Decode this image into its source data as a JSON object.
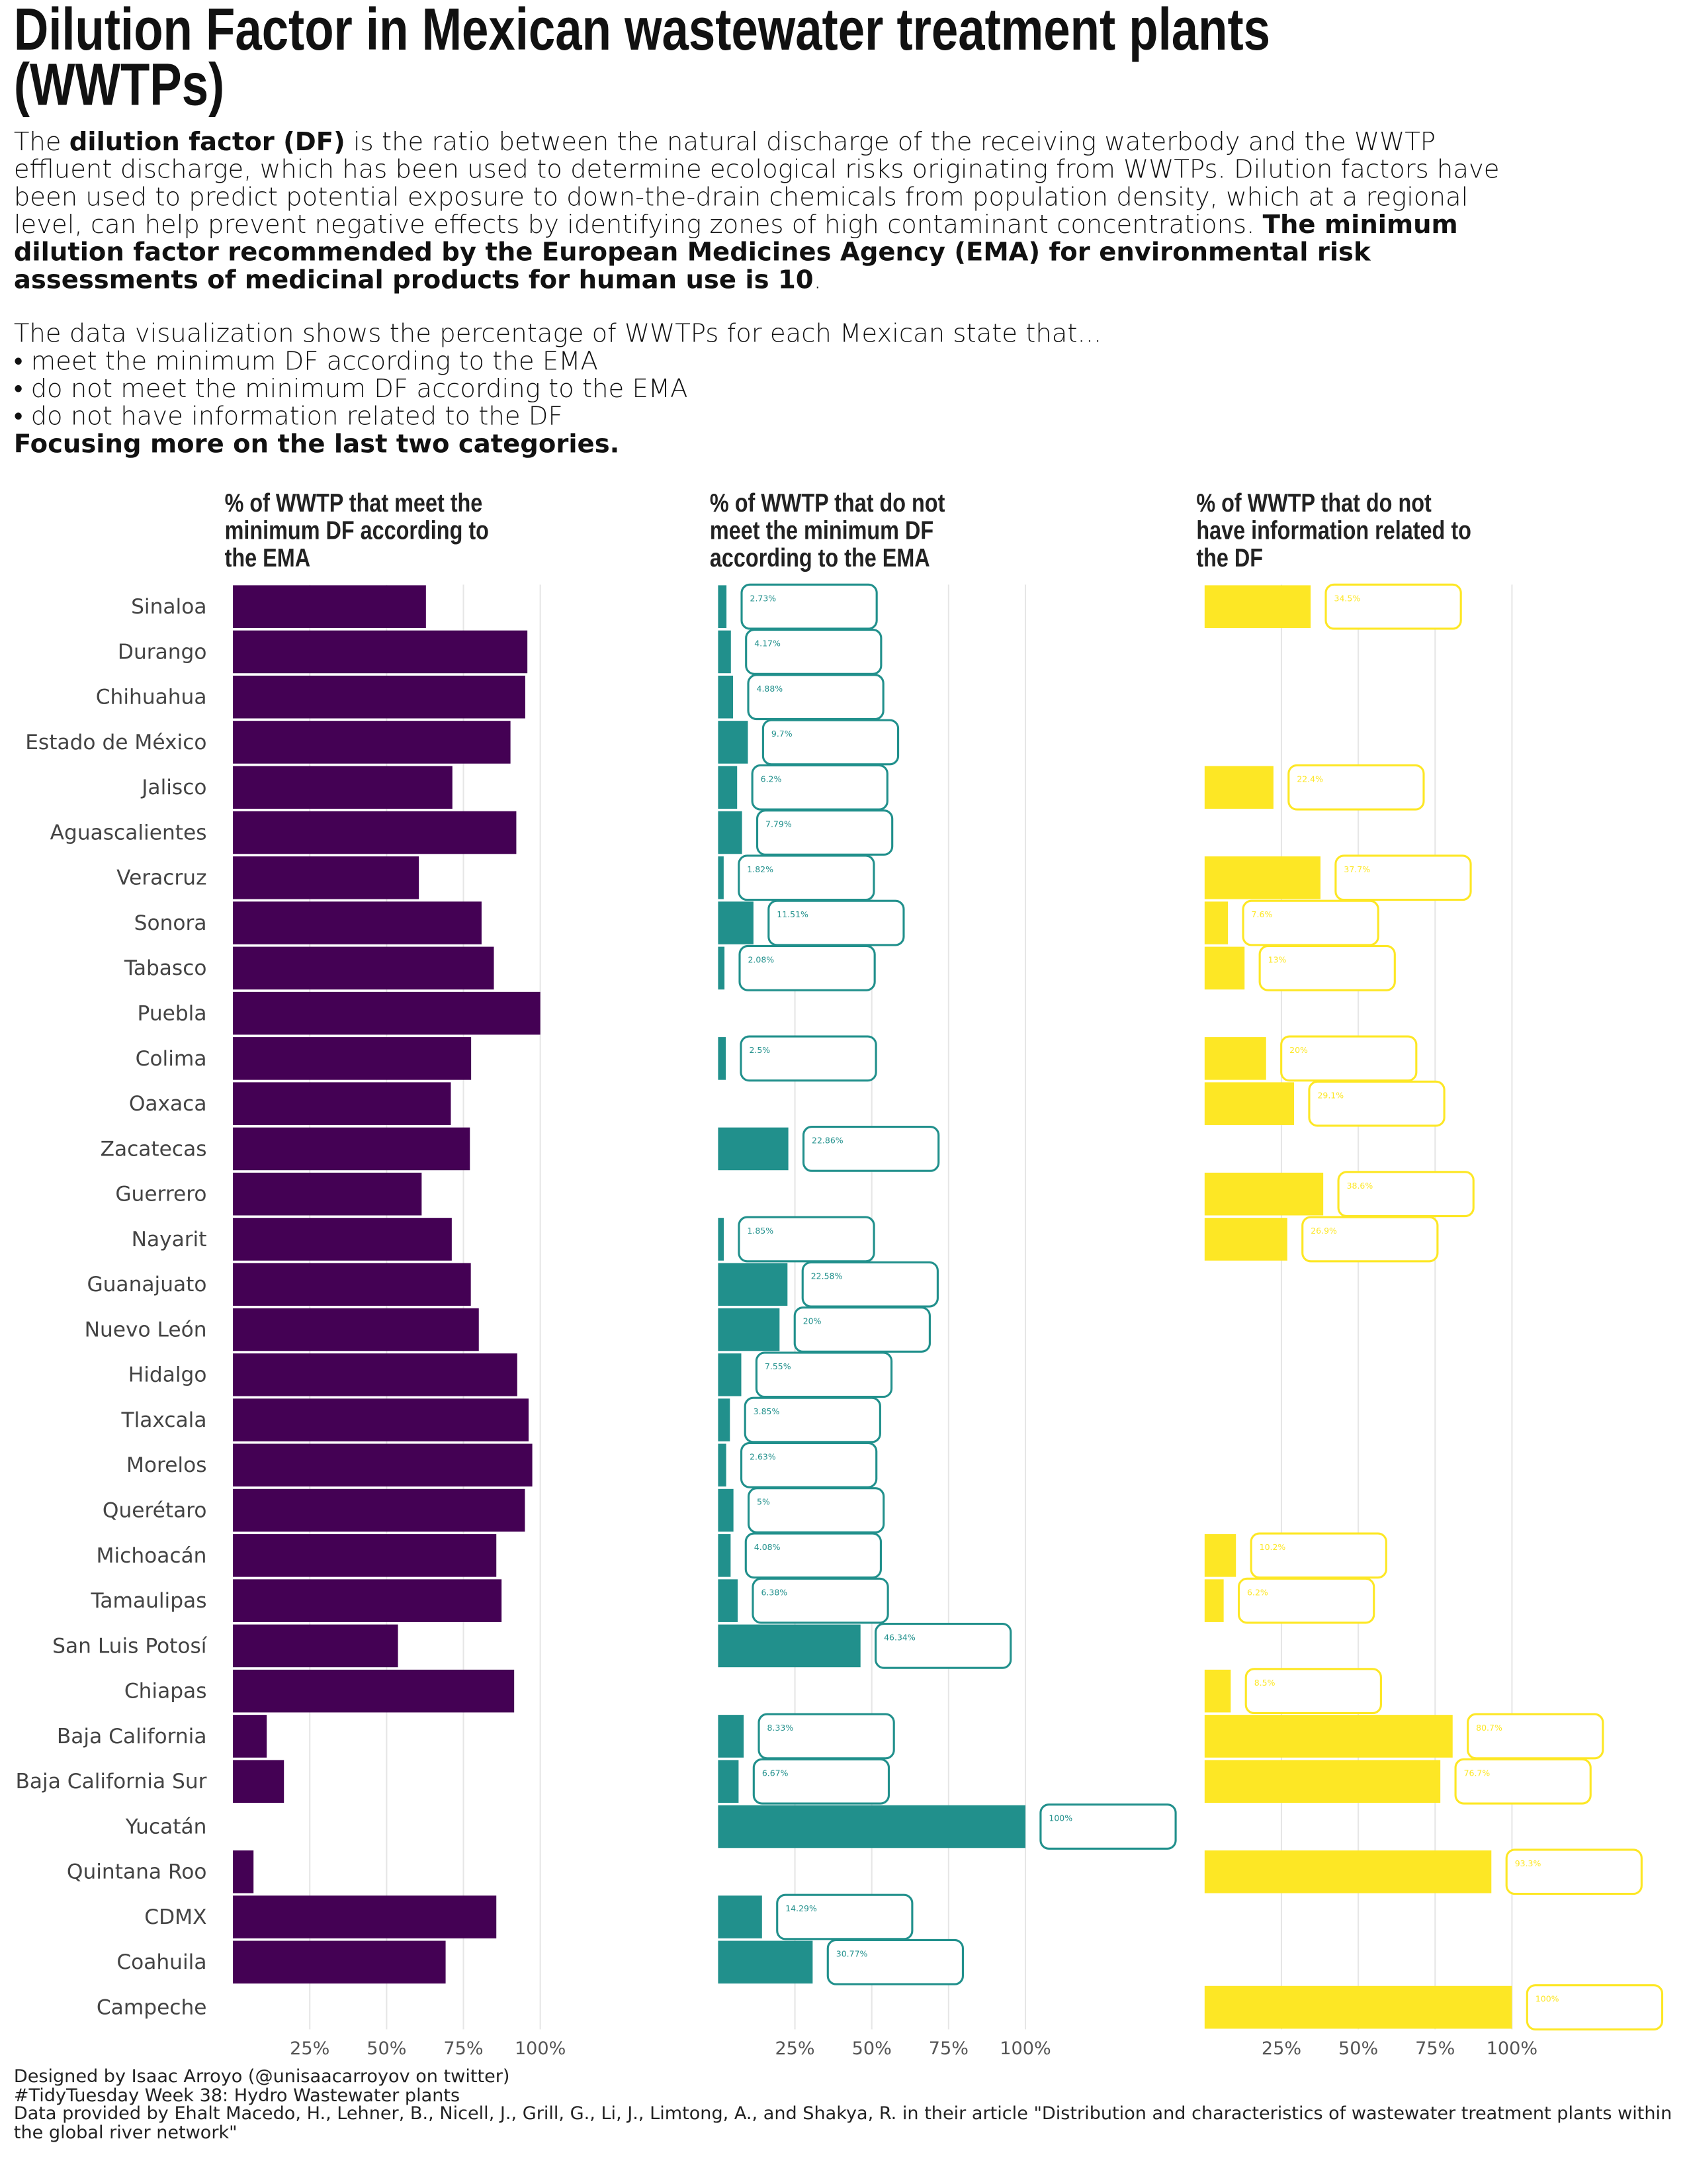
{
  "header": {
    "title": "Dilution Factor in Mexican wastewater treatment plants (WWTPs)",
    "intro": [
      "The ",
      "dilution factor (DF)",
      " is the ratio between the natural discharge of the receiving waterbody and the WWTP effluent discharge, which has been used to determine ecological risks originating from WWTPs. Dilution factors have been used to predict potential exposure to down-the-drain chemicals from population density, which at a regional level, can help prevent negative effects by identifying zones of high contaminant concentrations. ",
      "The minimum dilution factor recommended by the European Medicines Agency (EMA) for environmental risk assessments of medicinal products for human use is 10",
      "."
    ],
    "lead": "The data visualization shows the percentage of WWTPs for each Mexican state that...",
    "bullets": [
      "• meet the minimum DF according to the EMA",
      "• do not meet the minimum DF according to the EMA",
      "• do not have information related to the DF"
    ],
    "focus": "Focusing more on the last two categories."
  },
  "chart_data": {
    "type": "bar",
    "orientation": "horizontal",
    "categories": [
      "Sinaloa",
      "Durango",
      "Chihuahua",
      "Estado de México",
      "Jalisco",
      "Aguascalientes",
      "Veracruz",
      "Sonora",
      "Tabasco",
      "Puebla",
      "Colima",
      "Oaxaca",
      "Zacatecas",
      "Guerrero",
      "Nayarit",
      "Guanajuato",
      "Nuevo León",
      "Hidalgo",
      "Tlaxcala",
      "Morelos",
      "Querétaro",
      "Michoacán",
      "Tamaulipas",
      "San Luis Potosí",
      "Chiapas",
      "Baja California",
      "Baja California Sur",
      "Yucatán",
      "Quintana Roo",
      "CDMX",
      "Coahuila",
      "Campeche"
    ],
    "series": [
      {
        "name": "% of WWTP that meet the minimum DF according to the EMA",
        "color": "#440154",
        "values": [
          62.8,
          95.8,
          95.1,
          90.3,
          71.4,
          92.2,
          60.5,
          80.9,
          84.9,
          100,
          77.5,
          70.9,
          77.1,
          61.4,
          71.2,
          77.4,
          80,
          92.5,
          96.2,
          97.4,
          95,
          85.7,
          87.4,
          53.7,
          91.5,
          11,
          16.6,
          0,
          6.7,
          85.7,
          69.2,
          0
        ]
      },
      {
        "name": "% of WWTP that do not meet the minimum DF according to the EMA",
        "color": "#21908c",
        "values": [
          2.73,
          4.17,
          4.88,
          9.7,
          6.2,
          7.79,
          1.82,
          11.51,
          2.08,
          0,
          2.5,
          0,
          22.86,
          0,
          1.85,
          22.58,
          20,
          7.55,
          3.85,
          2.63,
          5,
          4.08,
          6.38,
          46.34,
          0,
          8.33,
          6.67,
          100,
          0,
          14.29,
          30.77,
          0
        ],
        "value_labels": [
          "2.73%",
          "4.17%",
          "4.88%",
          "9.7%",
          "6.2%",
          "7.79%",
          "1.82%",
          "11.51%",
          "2.08%",
          null,
          "2.5%",
          null,
          "22.86%",
          null,
          "1.85%",
          "22.58%",
          "20%",
          "7.55%",
          "3.85%",
          "2.63%",
          "5%",
          "4.08%",
          "6.38%",
          "46.34%",
          null,
          "8.33%",
          "6.67%",
          "100%",
          null,
          "14.29%",
          "30.77%",
          null
        ]
      },
      {
        "name": "% of WWTP that do not have information related to the DF",
        "color": "#fde725",
        "values": [
          34.5,
          0,
          0,
          0,
          22.4,
          0,
          37.7,
          7.6,
          13,
          0,
          20,
          29.1,
          0,
          38.6,
          26.9,
          0,
          0,
          0,
          0,
          0,
          0,
          10.2,
          6.2,
          0,
          8.5,
          80.7,
          76.7,
          0,
          93.3,
          0,
          0,
          100
        ],
        "value_labels": [
          "34.5%",
          null,
          null,
          null,
          "22.4%",
          null,
          "37.7%",
          "7.6%",
          "13%",
          null,
          "20%",
          "29.1%",
          null,
          "38.6%",
          "26.9%",
          null,
          null,
          null,
          null,
          null,
          null,
          "10.2%",
          "6.2%",
          null,
          "8.5%",
          "80.7%",
          "76.7%",
          null,
          "93.3%",
          null,
          null,
          "100%"
        ]
      }
    ],
    "xlim": [
      0,
      100
    ],
    "xticks": [
      {
        "value": 25,
        "label": "25%"
      },
      {
        "value": 50,
        "label": "50%"
      },
      {
        "value": 75,
        "label": "75%"
      },
      {
        "value": 100,
        "label": "100%"
      }
    ],
    "grid": true
  },
  "footer": [
    "Designed by Isaac Arroyo (@unisaacarroyov on twitter)",
    "#TidyTuesday Week 38: Hydro Wastewater plants",
    "Data provided by Ehalt Macedo, H., Lehner, B., Nicell, J., Grill, G., Li, J., Limtong, A., and Shakya, R. in their article \"Distribution and characteristics of wastewater treatment plants within the global river network\""
  ]
}
